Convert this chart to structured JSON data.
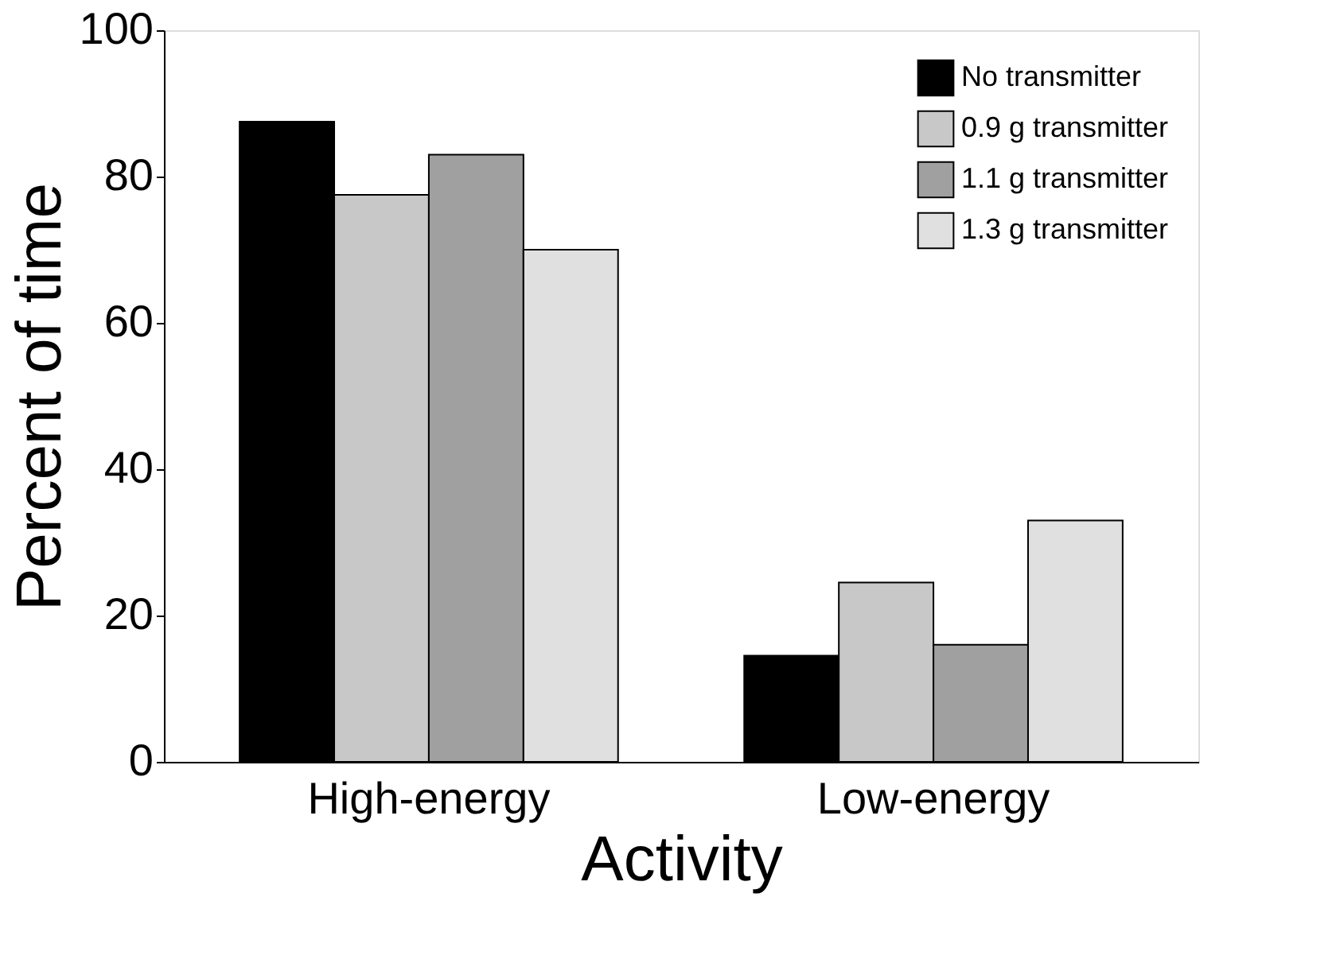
{
  "chart_data": {
    "type": "bar",
    "xlabel": "Activity",
    "ylabel": "Percent of time",
    "categories": [
      "High-energy",
      "Low-energy"
    ],
    "series": [
      {
        "name": "No transmitter",
        "color": "#000000",
        "values": [
          87.5,
          14.5
        ]
      },
      {
        "name": "0.9 g transmitter",
        "color": "#c8c8c8",
        "values": [
          77.5,
          24.5
        ]
      },
      {
        "name": "1.1 g transmitter",
        "color": "#a0a0a0",
        "values": [
          83,
          16
        ]
      },
      {
        "name": "1.3 g transmitter",
        "color": "#e0e0e0",
        "values": [
          70,
          33
        ]
      }
    ],
    "ylim": [
      0,
      100
    ],
    "yticks": [
      0,
      20,
      40,
      60,
      80,
      100
    ],
    "grid": false,
    "legend": "top right"
  }
}
